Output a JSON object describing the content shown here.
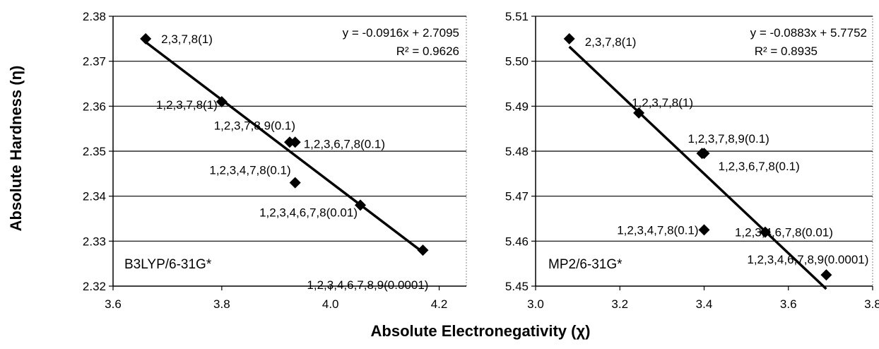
{
  "ylabel": "Absolute Hardness (η)",
  "xlabel": "Absolute Electronegativity (χ)",
  "chart_data": [
    {
      "type": "scatter",
      "method_label": "B3LYP/6-31G*",
      "equation": "y = -0.0916x + 2.7095",
      "r2_label": "R² = 0.9626",
      "trendline": {
        "slope": -0.0916,
        "intercept": 2.7095,
        "x_range": [
          3.66,
          4.17
        ]
      },
      "xlim": [
        3.6,
        4.25
      ],
      "ylim": [
        2.32,
        2.38
      ],
      "x_ticks": [
        "3.6",
        "3.8",
        "4.0",
        "4.2"
      ],
      "x_tick_values": [
        3.6,
        3.8,
        4.0,
        4.2
      ],
      "y_ticks": [
        "2.32",
        "2.33",
        "2.34",
        "2.35",
        "2.36",
        "2.37",
        "2.38"
      ],
      "y_tick_values": [
        2.32,
        2.33,
        2.34,
        2.35,
        2.36,
        2.37,
        2.38
      ],
      "grid": "horizontal",
      "points": [
        {
          "x": 3.66,
          "y": 2.375,
          "label": "2,3,7,8(1)"
        },
        {
          "x": 3.8,
          "y": 2.361,
          "label": "1,2,3,7,8(1)"
        },
        {
          "x": 3.925,
          "y": 2.352,
          "label": "1,2,3,7,8,9(0.1)"
        },
        {
          "x": 3.935,
          "y": 2.352,
          "label": "1,2,3,6,7,8(0.1)"
        },
        {
          "x": 3.935,
          "y": 2.343,
          "label": "1,2,3,4,7,8(0.1)"
        },
        {
          "x": 4.055,
          "y": 2.338,
          "label": "1,2,3,4,6,7,8(0.01)"
        },
        {
          "x": 4.17,
          "y": 2.328,
          "label": "1,2,3,4,6,7,8,9(0.0001)"
        }
      ]
    },
    {
      "type": "scatter",
      "method_label": "MP2/6-31G*",
      "equation": "y = -0.0883x + 5.7752",
      "r2_label": "R² = 0.8935",
      "trendline": {
        "slope": -0.0883,
        "intercept": 5.7752,
        "x_range": [
          3.08,
          3.69
        ]
      },
      "xlim": [
        3.0,
        3.8
      ],
      "ylim": [
        5.45,
        5.51
      ],
      "x_ticks": [
        "3.0",
        "3.2",
        "3.4",
        "3.6",
        "3.8"
      ],
      "x_tick_values": [
        3.0,
        3.2,
        3.4,
        3.6,
        3.8
      ],
      "y_ticks": [
        "5.45",
        "5.46",
        "5.47",
        "5.48",
        "5.49",
        "5.50",
        "5.51"
      ],
      "y_tick_values": [
        5.45,
        5.46,
        5.47,
        5.48,
        5.49,
        5.5,
        5.51
      ],
      "grid": "horizontal",
      "points": [
        {
          "x": 3.08,
          "y": 5.505,
          "label": "2,3,7,8(1)"
        },
        {
          "x": 3.245,
          "y": 5.4885,
          "label": "1,2,3,7,8(1)"
        },
        {
          "x": 3.395,
          "y": 5.4795,
          "label": "1,2,3,7,8,9(0.1)"
        },
        {
          "x": 3.4,
          "y": 5.4795,
          "label": "1,2,3,6,7,8(0.1)"
        },
        {
          "x": 3.4,
          "y": 5.4625,
          "label": "1,2,3,4,7,8(0.1)"
        },
        {
          "x": 3.545,
          "y": 5.462,
          "label": "1,2,3,4,6,7,8(0.01)"
        },
        {
          "x": 3.69,
          "y": 5.4525,
          "label": "1,2,3,4,6,7,8,9(0.0001)"
        }
      ]
    }
  ]
}
